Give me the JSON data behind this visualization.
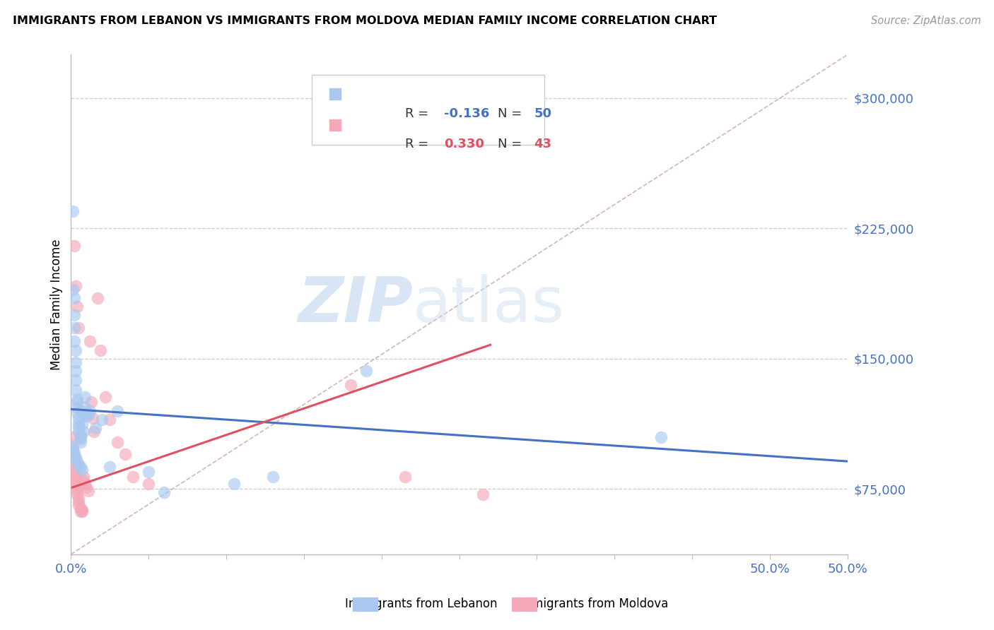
{
  "title": "IMMIGRANTS FROM LEBANON VS IMMIGRANTS FROM MOLDOVA MEDIAN FAMILY INCOME CORRELATION CHART",
  "source": "Source: ZipAtlas.com",
  "ylabel": "Median Family Income",
  "xlim": [
    0.0,
    0.5
  ],
  "ylim": [
    37500,
    325000
  ],
  "yticks": [
    75000,
    150000,
    225000,
    300000
  ],
  "ytick_labels": [
    "$75,000",
    "$150,000",
    "$225,000",
    "$300,000"
  ],
  "xticks": [
    0.0,
    0.05,
    0.1,
    0.15,
    0.2,
    0.25,
    0.3,
    0.35,
    0.4,
    0.45,
    0.5
  ],
  "xtick_labels_shown": {
    "0.0": "0.0%",
    "0.5": "50.0%"
  },
  "color_lebanon": "#A8C8F0",
  "color_moldova": "#F4A8B8",
  "color_line_lebanon": "#4472C4",
  "color_line_moldova": "#E05060",
  "color_diag": "#D0A0A0",
  "color_ytick": "#4472C4",
  "color_xtick": "#4472C4",
  "watermark_text": "ZIPatlas",
  "r_lebanon": -0.136,
  "n_lebanon": 50,
  "r_moldova": 0.33,
  "n_moldova": 43,
  "lebanon_x": [
    0.001,
    0.001,
    0.002,
    0.002,
    0.002,
    0.002,
    0.003,
    0.003,
    0.003,
    0.003,
    0.003,
    0.004,
    0.004,
    0.004,
    0.004,
    0.005,
    0.005,
    0.005,
    0.005,
    0.006,
    0.006,
    0.006,
    0.007,
    0.007,
    0.008,
    0.008,
    0.009,
    0.01,
    0.011,
    0.012,
    0.001,
    0.001,
    0.002,
    0.002,
    0.003,
    0.004,
    0.005,
    0.006,
    0.007,
    0.009,
    0.016,
    0.02,
    0.025,
    0.03,
    0.05,
    0.19,
    0.38,
    0.13,
    0.105,
    0.06
  ],
  "lebanon_y": [
    235000,
    190000,
    185000,
    175000,
    168000,
    160000,
    155000,
    148000,
    143000,
    138000,
    132000,
    127000,
    125000,
    122000,
    119000,
    116000,
    113000,
    111000,
    108000,
    106000,
    104000,
    102000,
    120000,
    112000,
    118000,
    108000,
    128000,
    117000,
    118000,
    120000,
    100000,
    98000,
    96000,
    94000,
    93000,
    91000,
    89000,
    88000,
    86000,
    122000,
    110000,
    115000,
    88000,
    120000,
    85000,
    143000,
    105000,
    82000,
    78000,
    73000
  ],
  "moldova_x": [
    0.001,
    0.001,
    0.002,
    0.002,
    0.002,
    0.003,
    0.003,
    0.003,
    0.004,
    0.004,
    0.004,
    0.005,
    0.005,
    0.005,
    0.006,
    0.006,
    0.007,
    0.007,
    0.008,
    0.008,
    0.009,
    0.01,
    0.011,
    0.012,
    0.013,
    0.014,
    0.015,
    0.017,
    0.019,
    0.022,
    0.025,
    0.03,
    0.035,
    0.04,
    0.05,
    0.18,
    0.215,
    0.265,
    0.002,
    0.003,
    0.004,
    0.005,
    0.006
  ],
  "moldova_y": [
    105000,
    98000,
    92000,
    88000,
    85000,
    82000,
    80000,
    78000,
    76000,
    74000,
    72000,
    70000,
    68000,
    66000,
    64000,
    105000,
    63000,
    62000,
    82000,
    80000,
    78000,
    76000,
    74000,
    160000,
    125000,
    116000,
    108000,
    185000,
    155000,
    128000,
    115000,
    102000,
    95000,
    82000,
    78000,
    135000,
    82000,
    72000,
    215000,
    192000,
    180000,
    168000,
    62000
  ],
  "leb_line_x": [
    0.0,
    0.5
  ],
  "leb_line_y": [
    121000,
    91000
  ],
  "mol_line_x": [
    0.001,
    0.27
  ],
  "mol_line_y": [
    76000,
    158000
  ]
}
